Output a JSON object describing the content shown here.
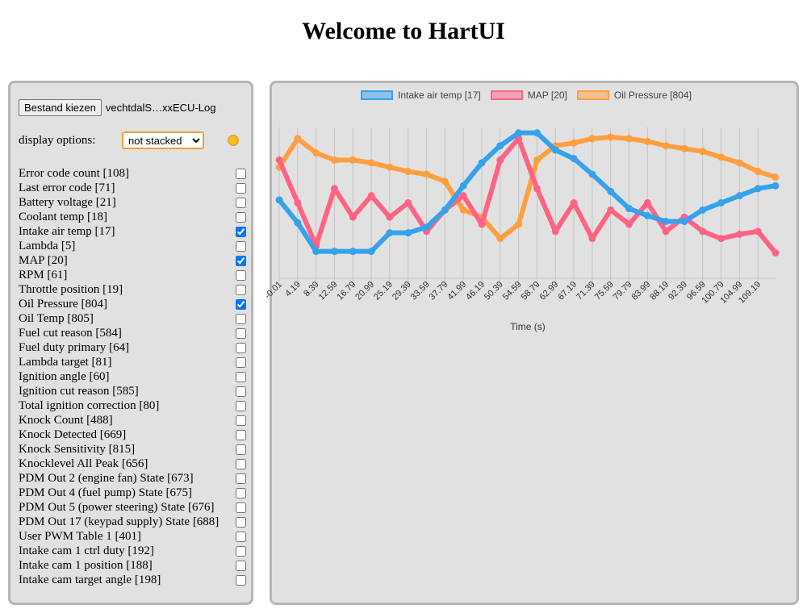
{
  "page": {
    "title": "Welcome to HartUI"
  },
  "controls": {
    "file_button_label": "Bestand kiezen",
    "file_name": "vechtdalS…xxECU-Log",
    "display_options_label": "display options:",
    "display_mode": "not stacked",
    "display_mode_options": [
      "not stacked"
    ],
    "theme_icon": "sun-icon"
  },
  "channels": [
    {
      "label": "Error code count [108]",
      "checked": false
    },
    {
      "label": "Last error code [71]",
      "checked": false
    },
    {
      "label": "Battery voltage [21]",
      "checked": false
    },
    {
      "label": "Coolant temp [18]",
      "checked": false
    },
    {
      "label": "Intake air temp [17]",
      "checked": true
    },
    {
      "label": "Lambda [5]",
      "checked": false
    },
    {
      "label": "MAP [20]",
      "checked": true
    },
    {
      "label": "RPM [61]",
      "checked": false
    },
    {
      "label": "Throttle position [19]",
      "checked": false
    },
    {
      "label": "Oil Pressure [804]",
      "checked": true
    },
    {
      "label": "Oil Temp [805]",
      "checked": false
    },
    {
      "label": "Fuel cut reason [584]",
      "checked": false
    },
    {
      "label": "Fuel duty primary [64]",
      "checked": false
    },
    {
      "label": "Lambda target [81]",
      "checked": false
    },
    {
      "label": "Ignition angle [60]",
      "checked": false
    },
    {
      "label": "Ignition cut reason [585]",
      "checked": false
    },
    {
      "label": "Total ignition correction [80]",
      "checked": false
    },
    {
      "label": "Knock Count [488]",
      "checked": false
    },
    {
      "label": "Knock Detected [669]",
      "checked": false
    },
    {
      "label": "Knock Sensitivity [815]",
      "checked": false
    },
    {
      "label": "Knocklevel All Peak [656]",
      "checked": false
    },
    {
      "label": "PDM Out 2 (engine fan) State [673]",
      "checked": false
    },
    {
      "label": "PDM Out 4 (fuel pump) State [675]",
      "checked": false
    },
    {
      "label": "PDM Out 5 (power steering) State [676]",
      "checked": false
    },
    {
      "label": "PDM Out 17 (keypad supply) State [688]",
      "checked": false
    },
    {
      "label": "User PWM Table 1 [401]",
      "checked": false
    },
    {
      "label": "Intake cam 1 ctrl duty [192]",
      "checked": false
    },
    {
      "label": "Intake cam 1 position [188]",
      "checked": false
    },
    {
      "label": "Intake cam target angle [198]",
      "checked": false
    }
  ],
  "chart_data": {
    "type": "line",
    "xlabel": "Time (s)",
    "x_ticks": [
      "-0.01",
      "4.19",
      "8.39",
      "12.59",
      "16.79",
      "20.99",
      "25.19",
      "29.39",
      "33.59",
      "37.79",
      "41.99",
      "46.19",
      "50.39",
      "54.59",
      "58.79",
      "62.99",
      "67.19",
      "71.39",
      "75.59",
      "79.79",
      "83.99",
      "88.19",
      "92.39",
      "96.59",
      "100.79",
      "104.99",
      "109.19"
    ],
    "x_range": [
      -0.01,
      113.39
    ],
    "y_range": [
      0,
      1
    ],
    "y_axis_labels_shown": false,
    "grid": "vertical",
    "legend_placement": "top-center",
    "x": [
      0,
      4.2,
      8.4,
      12.6,
      16.8,
      21,
      25.2,
      29.4,
      33.6,
      37.8,
      42,
      46.2,
      50.4,
      54.6,
      58.8,
      63,
      67.2,
      71.4,
      75.6,
      79.8,
      84,
      88.2,
      92.4,
      96.6,
      100.8,
      105,
      109.2,
      113.2
    ],
    "series": [
      {
        "name": "Intake air temp [17]",
        "color": "#36a2eb",
        "values": [
          0.52,
          0.36,
          0.16,
          0.16,
          0.16,
          0.16,
          0.29,
          0.29,
          0.33,
          0.45,
          0.62,
          0.78,
          0.9,
          0.99,
          0.99,
          0.87,
          0.81,
          0.7,
          0.58,
          0.46,
          0.41,
          0.37,
          0.37,
          0.45,
          0.5,
          0.55,
          0.6,
          0.62
        ]
      },
      {
        "name": "MAP [20]",
        "color": "#ff6384",
        "values": [
          0.8,
          0.5,
          0.2,
          0.6,
          0.4,
          0.55,
          0.4,
          0.5,
          0.3,
          0.45,
          0.55,
          0.35,
          0.8,
          0.95,
          0.6,
          0.3,
          0.5,
          0.25,
          0.45,
          0.35,
          0.5,
          0.3,
          0.4,
          0.3,
          0.25,
          0.28,
          0.3,
          0.15
        ]
      },
      {
        "name": "Oil Pressure [804]",
        "color": "#ff9f40",
        "values": [
          0.75,
          0.95,
          0.85,
          0.8,
          0.8,
          0.78,
          0.75,
          0.72,
          0.7,
          0.65,
          0.45,
          0.4,
          0.25,
          0.35,
          0.8,
          0.9,
          0.92,
          0.95,
          0.96,
          0.95,
          0.93,
          0.9,
          0.88,
          0.86,
          0.82,
          0.78,
          0.72,
          0.68
        ]
      }
    ]
  }
}
